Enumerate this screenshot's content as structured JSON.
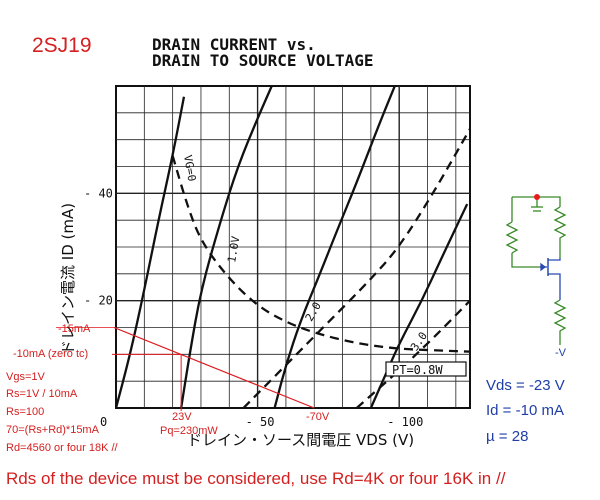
{
  "chart_data": {
    "type": "line",
    "title": "2SJ19",
    "subtitle_line1": "DRAIN CURRENT vs.",
    "subtitle_line2": "DRAIN TO SOURCE VOLTAGE",
    "ylabel": "ドレイン電流 ID (mA)",
    "xlabel": "ドレイン・ソース間電圧 VDS (V)",
    "xlim": [
      0,
      -125
    ],
    "ylim": [
      0,
      60
    ],
    "x_ticks": [
      {
        "v": 0,
        "label": "0"
      },
      {
        "v": -50,
        "label": "- 50"
      },
      {
        "v": -100,
        "label": "- 100"
      }
    ],
    "y_ticks": [
      {
        "v": 20,
        "label": "- 20"
      },
      {
        "v": 40,
        "label": "- 40"
      }
    ],
    "series": [
      {
        "name": "VG=0",
        "style": "solid",
        "points": [
          [
            0,
            0
          ],
          [
            -5,
            10
          ],
          [
            -10,
            22
          ],
          [
            -15,
            35
          ],
          [
            -20,
            47
          ],
          [
            -24,
            58
          ]
        ]
      },
      {
        "name": "VG=0",
        "style": "dashed",
        "points": [
          [
            -20,
            47
          ],
          [
            -25,
            38
          ],
          [
            -30,
            31
          ],
          [
            -40,
            24
          ],
          [
            -50,
            19
          ],
          [
            -60,
            16
          ],
          [
            -70,
            14
          ],
          [
            -85,
            12
          ],
          [
            -100,
            11
          ],
          [
            -115,
            10.7
          ],
          [
            -125,
            10.5
          ]
        ]
      },
      {
        "name": "1.0V",
        "style": "solid",
        "points": [
          [
            -23,
            0
          ],
          [
            -26,
            10
          ],
          [
            -30,
            22
          ],
          [
            -37,
            35
          ],
          [
            -43,
            45
          ],
          [
            -50,
            54
          ],
          [
            -55,
            60
          ]
        ]
      },
      {
        "name": "2.0",
        "style": "solid",
        "points": [
          [
            -56,
            0
          ],
          [
            -60,
            8
          ],
          [
            -65,
            16
          ],
          [
            -72,
            25
          ],
          [
            -78,
            33
          ],
          [
            -85,
            42
          ],
          [
            -93,
            53
          ],
          [
            -100,
            62
          ]
        ]
      },
      {
        "name": "3.0",
        "style": "solid",
        "points": [
          [
            -90,
            0
          ],
          [
            -95,
            6
          ],
          [
            -100,
            12
          ],
          [
            -108,
            20
          ],
          [
            -115,
            28
          ],
          [
            -124,
            38
          ]
        ]
      },
      {
        "name": "",
        "style": "dashed",
        "points": [
          [
            -45,
            0
          ],
          [
            -60,
            8
          ],
          [
            -75,
            16
          ],
          [
            -90,
            24
          ],
          [
            -100,
            30
          ],
          [
            -112,
            40
          ],
          [
            -125,
            52
          ]
        ]
      },
      {
        "name": "",
        "style": "dashed",
        "points": [
          [
            -85,
            0
          ],
          [
            -100,
            7
          ],
          [
            -112,
            13
          ],
          [
            -125,
            20
          ]
        ]
      }
    ],
    "curve_labels": [
      {
        "text": "VG=0",
        "x": -24,
        "y": 47
      },
      {
        "text": "1.0V",
        "x": -42,
        "y": 27
      },
      {
        "text": "2.0",
        "x": -69,
        "y": 16
      },
      {
        "text": "3.0",
        "x": -106,
        "y": 10.5
      }
    ],
    "pt_label": "PT=0.8W",
    "load_line": {
      "points": [
        [
          0,
          15
        ],
        [
          -70,
          0
        ]
      ]
    },
    "operating_point": {
      "x": -23,
      "y": 10
    }
  },
  "annotations": {
    "i15": "-15mA",
    "i10": "-10mA (zero tc)",
    "vgs": "Vgs=1V",
    "rs1": "Rs=1V / 10mA",
    "rs2": "Rs=100",
    "eq": "70=(Rs+Rd)*15mA",
    "rd": "Rd=4560 or four 18K //",
    "v23": "23V",
    "pq": "Pq=230mW",
    "v70": "-70V",
    "bottom_note": "Rds of the device must be considered, use Rd=4K or four 16K in //"
  },
  "results": {
    "vds": "Vds = -23 V",
    "id": "Id = -10 mA",
    "mu": "µ = 28"
  },
  "schematic": {
    "supply_label": "-V"
  }
}
